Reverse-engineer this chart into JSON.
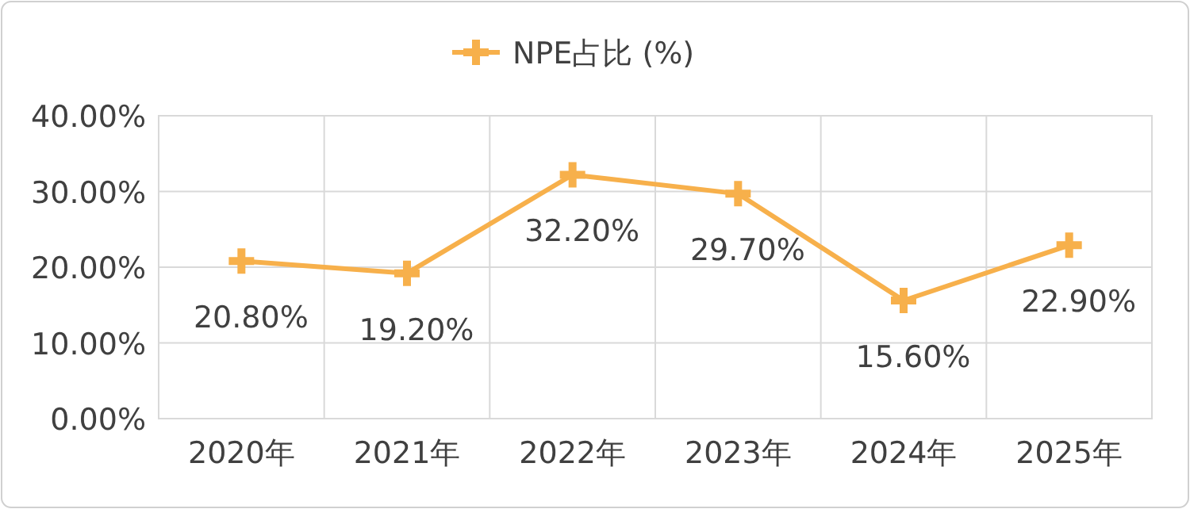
{
  "chart_data": {
    "type": "line",
    "categories": [
      "2020年",
      "2021年",
      "2022年",
      "2023年",
      "2024年",
      "2025年"
    ],
    "series": [
      {
        "name": "NPE占比 (%)",
        "color": "#f7b04b",
        "values": [
          20.8,
          19.2,
          32.2,
          29.7,
          15.6,
          22.9
        ],
        "value_labels": [
          "20.80%",
          "19.20%",
          "32.20%",
          "29.70%",
          "15.60%",
          "22.90%"
        ]
      }
    ],
    "ylim": [
      0,
      40
    ],
    "yticks": [
      {
        "value": 0,
        "label": "0.00%"
      },
      {
        "value": 10,
        "label": "10.00%"
      },
      {
        "value": 20,
        "label": "20.00%"
      },
      {
        "value": 30,
        "label": "30.00%"
      },
      {
        "value": 40,
        "label": "40.00%"
      }
    ],
    "grid": true,
    "legend": "top",
    "marker": "cross",
    "line_style": "solid"
  }
}
